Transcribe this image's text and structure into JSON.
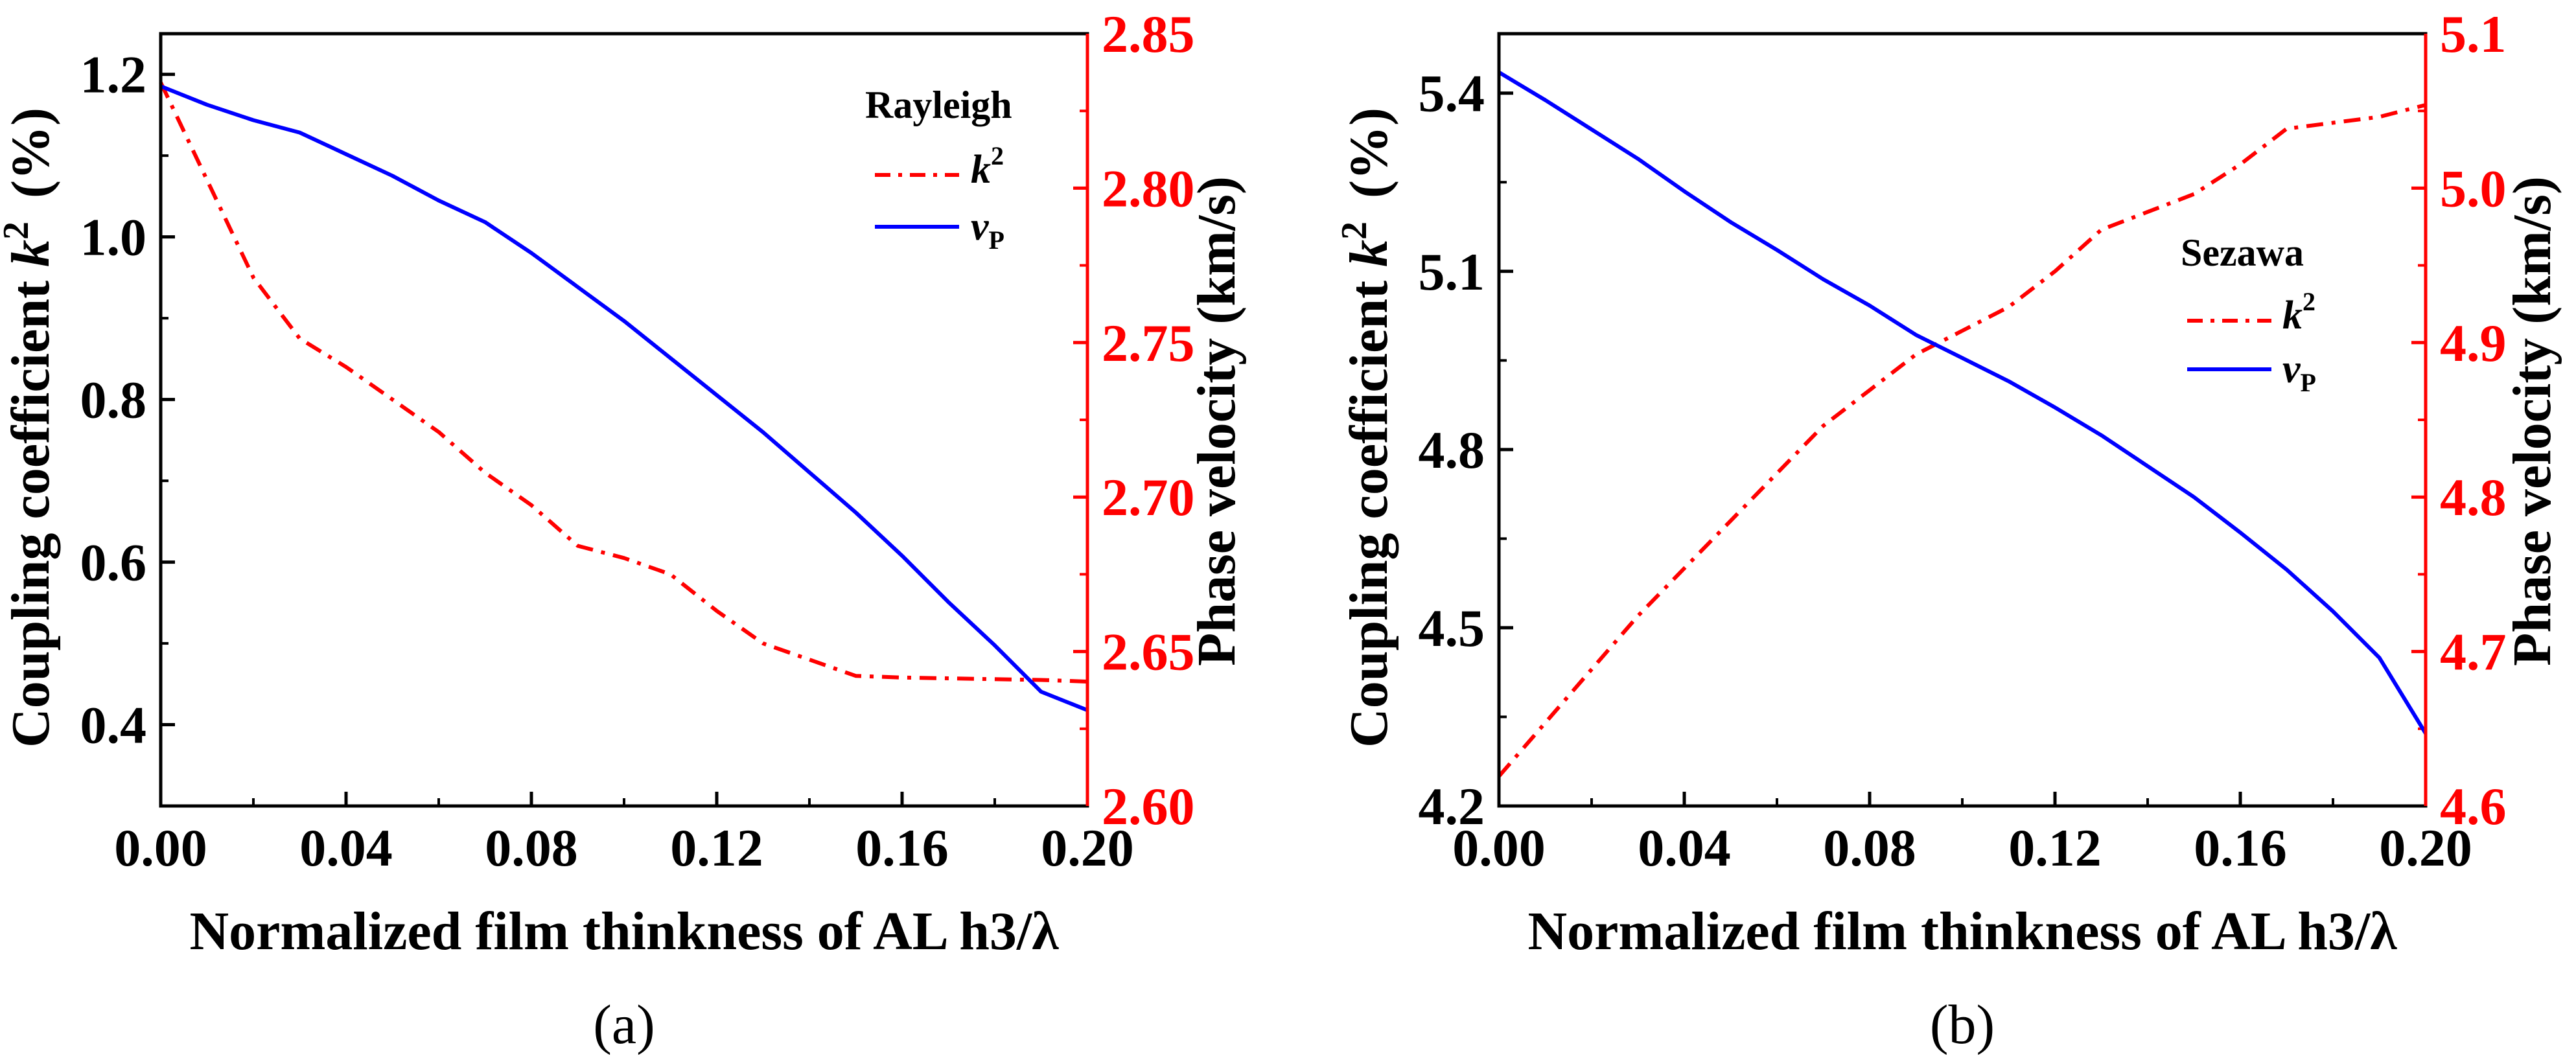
{
  "chart_data": [
    {
      "type": "line",
      "panel": "a",
      "caption": "(a)",
      "xlabel": "Normalized film thinkness of AL h3/λ",
      "ylabel_left": {
        "text": "Coupling coefficient ",
        "symbol": "k",
        "sup": "2",
        "unit": "(%)"
      },
      "ylabel_right": "Phase velocity (km/s)",
      "xlim": [
        0,
        0.2
      ],
      "ylim_left": [
        0.3,
        1.25
      ],
      "ylim_right": [
        2.6,
        2.85
      ],
      "xticks": [
        0.0,
        0.04,
        0.08,
        0.12,
        0.16,
        0.2
      ],
      "xtick_labels": [
        "0.00",
        "0.04",
        "0.08",
        "0.12",
        "0.16",
        "0.20"
      ],
      "yticks_left": [
        0.4,
        0.6,
        0.8,
        1.0,
        1.2
      ],
      "ytick_labels_left": [
        "0.4",
        "0.6",
        "0.8",
        "1.0",
        "1.2"
      ],
      "yticks_right": [
        2.6,
        2.65,
        2.7,
        2.75,
        2.8,
        2.85
      ],
      "ytick_labels_right": [
        "2.60",
        "2.65",
        "2.70",
        "2.75",
        "2.80",
        "2.85"
      ],
      "legend": {
        "title": "Rayleigh",
        "placement": "top-right",
        "entries": [
          {
            "symbol": "k",
            "sup": "2",
            "sub": "",
            "style": "dash-dot",
            "color": "#ff0000"
          },
          {
            "symbol": "v",
            "sup": "",
            "sub": "P",
            "style": "solid",
            "color": "#0000ff"
          }
        ]
      },
      "series": [
        {
          "name": "k2",
          "axis": "left",
          "style": "dash-dot",
          "color": "#ff0000",
          "x": [
            0.0,
            0.01,
            0.02,
            0.03,
            0.04,
            0.05,
            0.06,
            0.07,
            0.08,
            0.09,
            0.1,
            0.11,
            0.12,
            0.13,
            0.14,
            0.15,
            0.16,
            0.17,
            0.18,
            0.19,
            0.2
          ],
          "values": [
            1.19,
            1.07,
            0.95,
            0.875,
            0.84,
            0.8,
            0.76,
            0.71,
            0.67,
            0.62,
            0.605,
            0.585,
            0.54,
            0.5,
            0.48,
            0.46,
            0.458,
            0.457,
            0.456,
            0.455,
            0.453
          ]
        },
        {
          "name": "vP",
          "axis": "right",
          "style": "solid",
          "color": "#0000ff",
          "x": [
            0.0,
            0.01,
            0.02,
            0.03,
            0.04,
            0.05,
            0.06,
            0.07,
            0.08,
            0.09,
            0.1,
            0.11,
            0.12,
            0.13,
            0.14,
            0.15,
            0.16,
            0.17,
            0.18,
            0.19,
            0.2
          ],
          "values": [
            2.833,
            2.827,
            2.822,
            2.818,
            2.811,
            2.804,
            2.796,
            2.789,
            2.779,
            2.768,
            2.757,
            2.745,
            2.733,
            2.721,
            2.708,
            2.695,
            2.681,
            2.666,
            2.652,
            2.637,
            2.631
          ]
        }
      ]
    },
    {
      "type": "line",
      "panel": "b",
      "caption": "(b)",
      "xlabel": "Normalized film thinkness of AL h3/λ",
      "ylabel_left": {
        "text": "Coupling coefficient ",
        "symbol": "k",
        "sup": "2",
        "unit": "(%)"
      },
      "ylabel_right": "Phase velocity (km/s)",
      "xlim": [
        0,
        0.2
      ],
      "ylim_left": [
        4.2,
        5.5
      ],
      "ylim_right": [
        4.6,
        5.1
      ],
      "xticks": [
        0.0,
        0.04,
        0.08,
        0.12,
        0.16,
        0.2
      ],
      "xtick_labels": [
        "0.00",
        "0.04",
        "0.08",
        "0.12",
        "0.16",
        "0.20"
      ],
      "yticks_left": [
        4.2,
        4.5,
        4.8,
        5.1,
        5.4
      ],
      "ytick_labels_left": [
        "4.2",
        "4.5",
        "4.8",
        "5.1",
        "5.4"
      ],
      "yticks_right": [
        4.6,
        4.7,
        4.8,
        4.9,
        5.0,
        5.1
      ],
      "ytick_labels_right": [
        "4.6",
        "4.7",
        "4.8",
        "4.9",
        "5.0",
        "5.1"
      ],
      "legend": {
        "title": "Sezawa",
        "placement": "center-right",
        "entries": [
          {
            "symbol": "k",
            "sup": "2",
            "sub": "",
            "style": "dash-dot",
            "color": "#ff0000"
          },
          {
            "symbol": "v",
            "sup": "",
            "sub": "P",
            "style": "solid",
            "color": "#0000ff"
          }
        ]
      },
      "series": [
        {
          "name": "k2",
          "axis": "left",
          "style": "dash-dot",
          "color": "#ff0000",
          "x": [
            0.0,
            0.01,
            0.02,
            0.03,
            0.04,
            0.05,
            0.06,
            0.07,
            0.08,
            0.09,
            0.1,
            0.11,
            0.12,
            0.13,
            0.14,
            0.15,
            0.16,
            0.17,
            0.18,
            0.19,
            0.2
          ],
          "values": [
            4.25,
            4.34,
            4.43,
            4.52,
            4.6,
            4.68,
            4.76,
            4.84,
            4.9,
            4.96,
            5.0,
            5.04,
            5.1,
            5.17,
            5.2,
            5.23,
            5.28,
            5.34,
            5.35,
            5.36,
            5.38
          ]
        },
        {
          "name": "vP",
          "axis": "right",
          "style": "solid",
          "color": "#0000ff",
          "x": [
            0.0,
            0.01,
            0.02,
            0.03,
            0.04,
            0.05,
            0.06,
            0.07,
            0.08,
            0.09,
            0.1,
            0.11,
            0.12,
            0.13,
            0.14,
            0.15,
            0.16,
            0.17,
            0.18,
            0.19,
            0.2
          ],
          "values": [
            5.075,
            5.057,
            5.038,
            5.019,
            4.998,
            4.978,
            4.96,
            4.941,
            4.924,
            4.905,
            4.89,
            4.875,
            4.858,
            4.84,
            4.82,
            4.8,
            4.777,
            4.753,
            4.726,
            4.696,
            4.647
          ]
        }
      ]
    }
  ]
}
